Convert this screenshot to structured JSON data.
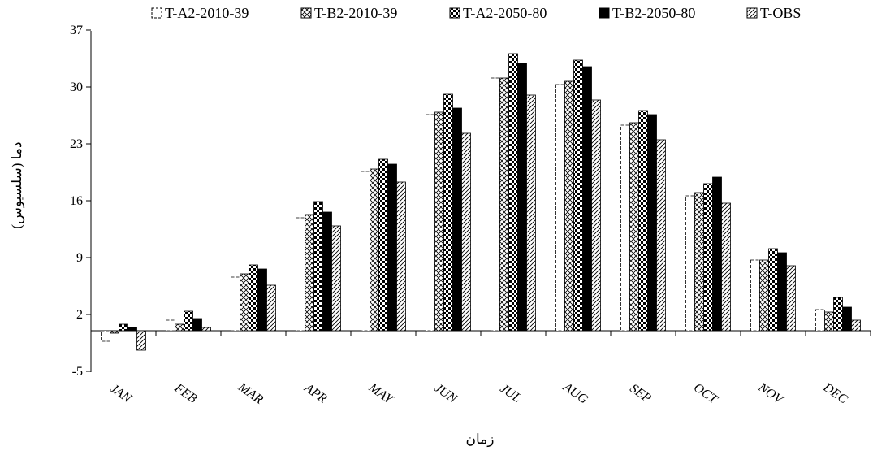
{
  "chart_data": {
    "type": "bar",
    "title": "",
    "xlabel": "زمان",
    "ylabel": "دما (سلسيوس)",
    "categories": [
      "JAN",
      "FEB",
      "MAR",
      "APR",
      "MAY",
      "JUN",
      "JUL",
      "AUG",
      "SEP",
      "OCT",
      "NOV",
      "DEC"
    ],
    "ylim": [
      -5,
      37
    ],
    "yticks": [
      -5,
      2,
      9,
      16,
      23,
      30,
      37
    ],
    "legend_position": "top",
    "grid": false,
    "series": [
      {
        "name": "T-A2-2010-39",
        "pattern": "dashed-outline",
        "values": [
          -1.3,
          1.3,
          6.6,
          13.9,
          19.6,
          26.6,
          31.1,
          30.3,
          25.3,
          16.6,
          8.7,
          2.6
        ]
      },
      {
        "name": "T-B2-2010-39",
        "pattern": "crosshatch",
        "values": [
          -0.3,
          0.8,
          7.0,
          14.3,
          19.9,
          26.9,
          31.1,
          30.7,
          25.6,
          17.0,
          8.7,
          2.3
        ]
      },
      {
        "name": "T-A2-2050-80",
        "pattern": "checker",
        "values": [
          0.8,
          2.4,
          8.1,
          15.9,
          21.1,
          29.1,
          34.1,
          33.3,
          27.1,
          18.1,
          10.1,
          4.1
        ]
      },
      {
        "name": "T-B2-2050-80",
        "pattern": "solid-black",
        "values": [
          0.4,
          1.5,
          7.6,
          14.6,
          20.5,
          27.4,
          32.9,
          32.5,
          26.6,
          18.9,
          9.6,
          2.9
        ]
      },
      {
        "name": "T-OBS",
        "pattern": "diagonal",
        "values": [
          -2.4,
          0.4,
          5.6,
          12.9,
          18.3,
          24.3,
          29.0,
          28.4,
          23.5,
          15.7,
          8.0,
          1.3
        ]
      }
    ]
  }
}
